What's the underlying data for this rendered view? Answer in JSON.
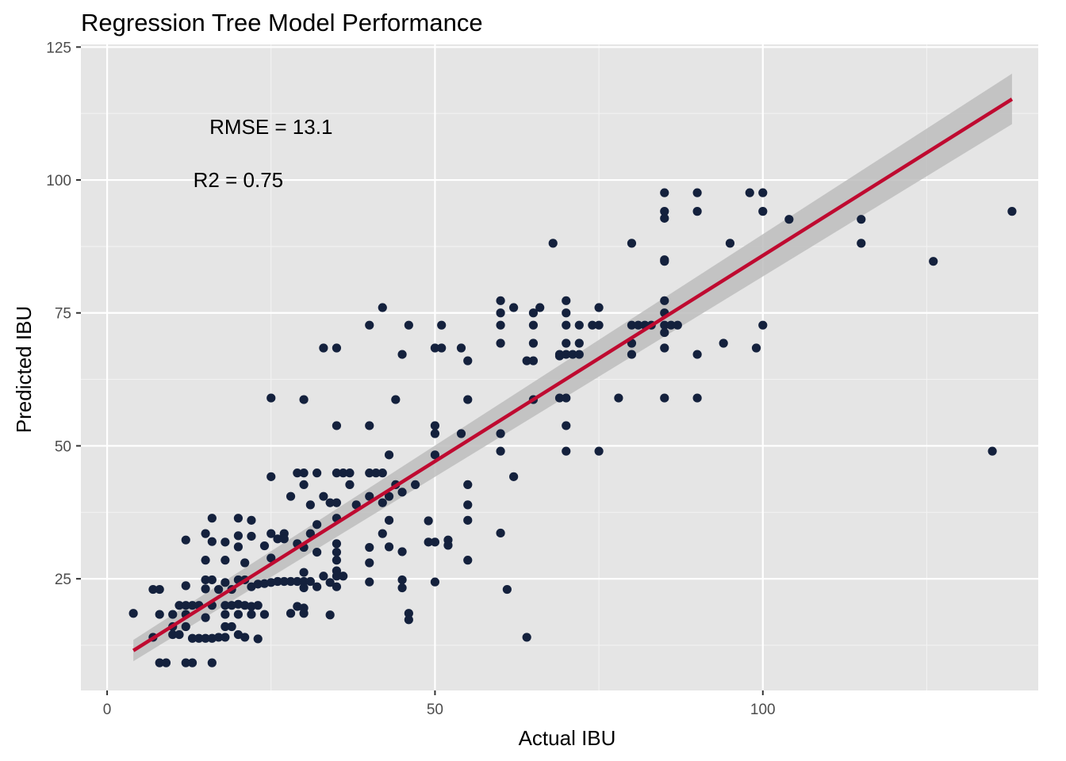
{
  "chart_data": {
    "type": "scatter",
    "title": "Regression Tree Model Performance",
    "xlabel": "Actual IBU",
    "ylabel": "Predicted IBU",
    "xlim": [
      -4,
      142
    ],
    "ylim": [
      4,
      125.5
    ],
    "x_ticks": [
      0,
      50,
      100
    ],
    "x_tick_labels": [
      "0",
      "50",
      "100"
    ],
    "y_ticks": [
      25,
      50,
      75,
      100,
      125
    ],
    "y_tick_labels": [
      "25",
      "50",
      "75",
      "100",
      "125"
    ],
    "grid": true,
    "background_color": "#e5e5e5",
    "point_color": "#14213d",
    "fit_line_color": "#bf0a30",
    "confidence_band_color": "#bdbdbd",
    "annotations": [
      {
        "text": "RMSE = 13.1",
        "x": 25,
        "y": 110
      },
      {
        "text": "R2 = 0.75",
        "x": 20,
        "y": 100
      }
    ],
    "fit_line": {
      "x": [
        4,
        138
      ],
      "y": [
        11.5,
        115.2
      ]
    },
    "confidence_band": {
      "x": [
        4,
        138
      ],
      "y_lower": [
        9.5,
        110.5
      ],
      "y_upper": [
        13.5,
        120
      ]
    },
    "points": [
      [
        4,
        18.5
      ],
      [
        7,
        23
      ],
      [
        7,
        14
      ],
      [
        8,
        23
      ],
      [
        8,
        18.3
      ],
      [
        8,
        9.2
      ],
      [
        9,
        9.2
      ],
      [
        10,
        18.3
      ],
      [
        10,
        16
      ],
      [
        10,
        14.5
      ],
      [
        11,
        20
      ],
      [
        11,
        14.5
      ],
      [
        12,
        23.7
      ],
      [
        12,
        20
      ],
      [
        12,
        18.3
      ],
      [
        12,
        16
      ],
      [
        12,
        9.2
      ],
      [
        12,
        32.3
      ],
      [
        13,
        20
      ],
      [
        13,
        13.8
      ],
      [
        13,
        9.2
      ],
      [
        14,
        20
      ],
      [
        14,
        13.8
      ],
      [
        15,
        33.5
      ],
      [
        15,
        28.5
      ],
      [
        15,
        24.8
      ],
      [
        15,
        23.1
      ],
      [
        15,
        17.7
      ],
      [
        15,
        13.8
      ],
      [
        16,
        36.4
      ],
      [
        16,
        32
      ],
      [
        16,
        24.8
      ],
      [
        16,
        20
      ],
      [
        16,
        13.8
      ],
      [
        16,
        9.2
      ],
      [
        17,
        23
      ],
      [
        17,
        14
      ],
      [
        18,
        31.9
      ],
      [
        18,
        28.5
      ],
      [
        18,
        24.3
      ],
      [
        18,
        20
      ],
      [
        18,
        18.3
      ],
      [
        18,
        16
      ],
      [
        18,
        14
      ],
      [
        19,
        23
      ],
      [
        19,
        20
      ],
      [
        19,
        16
      ],
      [
        20,
        36.4
      ],
      [
        20,
        33.1
      ],
      [
        20,
        31
      ],
      [
        20,
        24.8
      ],
      [
        20,
        20.2
      ],
      [
        20,
        18.3
      ],
      [
        20,
        14.5
      ],
      [
        21,
        28
      ],
      [
        21,
        24.8
      ],
      [
        21,
        20
      ],
      [
        21,
        14
      ],
      [
        22,
        36
      ],
      [
        22,
        33
      ],
      [
        22,
        23.5
      ],
      [
        22,
        19.8
      ],
      [
        22,
        18.3
      ],
      [
        23,
        24
      ],
      [
        23,
        20
      ],
      [
        23,
        13.7
      ],
      [
        24,
        31.2
      ],
      [
        24,
        24.1
      ],
      [
        24,
        18.3
      ],
      [
        25,
        59
      ],
      [
        25,
        44.2
      ],
      [
        25,
        33.5
      ],
      [
        25,
        28.9
      ],
      [
        25,
        24.3
      ],
      [
        26,
        32.5
      ],
      [
        26,
        24.5
      ],
      [
        27,
        33.5
      ],
      [
        27,
        32.5
      ],
      [
        27,
        24.5
      ],
      [
        28,
        40.5
      ],
      [
        28,
        24.5
      ],
      [
        28,
        18.5
      ],
      [
        29,
        44.9
      ],
      [
        29,
        31.6
      ],
      [
        29,
        24.5
      ],
      [
        29,
        19.8
      ],
      [
        30,
        58.7
      ],
      [
        30,
        44.9
      ],
      [
        30,
        42.7
      ],
      [
        30,
        30.9
      ],
      [
        30,
        26.2
      ],
      [
        30,
        24.5
      ],
      [
        30,
        23.3
      ],
      [
        30,
        19.5
      ],
      [
        30,
        18.5
      ],
      [
        31,
        38.9
      ],
      [
        31,
        33.5
      ],
      [
        31,
        24.5
      ],
      [
        32,
        44.9
      ],
      [
        32,
        35.2
      ],
      [
        32,
        30
      ],
      [
        32,
        23.5
      ],
      [
        33,
        68.4
      ],
      [
        33,
        40.5
      ],
      [
        33,
        25.5
      ],
      [
        34,
        39.3
      ],
      [
        34,
        18.2
      ],
      [
        34,
        24.3
      ],
      [
        35,
        68.4
      ],
      [
        35,
        53.8
      ],
      [
        35,
        44.9
      ],
      [
        35,
        39.3
      ],
      [
        35,
        36.4
      ],
      [
        35,
        31.6
      ],
      [
        35,
        30
      ],
      [
        35,
        28.5
      ],
      [
        35,
        26.5
      ],
      [
        35,
        25.5
      ],
      [
        35,
        23.5
      ],
      [
        36,
        44.9
      ],
      [
        36,
        25.5
      ],
      [
        37,
        44.9
      ],
      [
        37,
        42.7
      ],
      [
        38,
        38.9
      ],
      [
        40,
        72.7
      ],
      [
        40,
        53.8
      ],
      [
        40,
        44.9
      ],
      [
        40,
        40.5
      ],
      [
        40,
        30.9
      ],
      [
        40,
        28
      ],
      [
        40,
        24.4
      ],
      [
        41,
        44.9
      ],
      [
        42,
        76
      ],
      [
        42,
        44.9
      ],
      [
        42,
        39.3
      ],
      [
        42,
        33.5
      ],
      [
        43,
        48.3
      ],
      [
        43,
        40.5
      ],
      [
        43,
        36
      ],
      [
        43,
        31
      ],
      [
        44,
        58.7
      ],
      [
        44,
        42.7
      ],
      [
        45,
        67.2
      ],
      [
        45,
        41.3
      ],
      [
        45,
        30.1
      ],
      [
        45,
        24.8
      ],
      [
        45,
        23.3
      ],
      [
        46,
        72.7
      ],
      [
        46,
        18.5
      ],
      [
        46,
        17.3
      ],
      [
        47,
        42.7
      ],
      [
        49,
        35.9
      ],
      [
        49,
        31.9
      ],
      [
        50,
        68.4
      ],
      [
        50,
        53.8
      ],
      [
        50,
        52.3
      ],
      [
        50,
        48.3
      ],
      [
        50,
        31.9
      ],
      [
        50,
        24.4
      ],
      [
        51,
        72.7
      ],
      [
        51,
        68.4
      ],
      [
        52,
        32.3
      ],
      [
        52,
        31.3
      ],
      [
        54,
        68.4
      ],
      [
        54,
        52.3
      ],
      [
        55,
        66
      ],
      [
        55,
        58.7
      ],
      [
        55,
        42.7
      ],
      [
        55,
        38.9
      ],
      [
        55,
        36
      ],
      [
        55,
        28.5
      ],
      [
        60,
        77.3
      ],
      [
        60,
        75
      ],
      [
        60,
        72.7
      ],
      [
        60,
        69.3
      ],
      [
        60,
        52.3
      ],
      [
        60,
        49
      ],
      [
        60,
        33.6
      ],
      [
        61,
        23
      ],
      [
        62,
        76
      ],
      [
        62,
        44.2
      ],
      [
        64,
        66
      ],
      [
        64,
        14
      ],
      [
        65,
        75
      ],
      [
        65,
        72.7
      ],
      [
        65,
        69.3
      ],
      [
        65,
        66
      ],
      [
        65,
        58.7
      ],
      [
        66,
        76
      ],
      [
        68,
        88.1
      ],
      [
        69,
        66.9
      ],
      [
        69,
        67.2
      ],
      [
        69,
        59
      ],
      [
        70,
        77.3
      ],
      [
        70,
        75
      ],
      [
        70,
        72.7
      ],
      [
        70,
        69.3
      ],
      [
        70,
        67.2
      ],
      [
        70,
        59
      ],
      [
        70,
        53.8
      ],
      [
        70,
        49
      ],
      [
        71,
        67.2
      ],
      [
        72,
        72.7
      ],
      [
        72,
        69.3
      ],
      [
        72,
        67.2
      ],
      [
        74,
        72.7
      ],
      [
        75,
        76
      ],
      [
        75,
        72.7
      ],
      [
        75,
        49
      ],
      [
        78,
        59
      ],
      [
        80,
        88.1
      ],
      [
        80,
        72.7
      ],
      [
        80,
        69.3
      ],
      [
        80,
        67.2
      ],
      [
        81,
        72.7
      ],
      [
        82,
        72.7
      ],
      [
        83,
        72.7
      ],
      [
        85,
        97.6
      ],
      [
        85,
        94.1
      ],
      [
        85,
        92.8
      ],
      [
        85,
        85
      ],
      [
        85,
        84.7
      ],
      [
        85,
        77.3
      ],
      [
        85,
        75
      ],
      [
        85,
        72.7
      ],
      [
        85,
        71.3
      ],
      [
        85,
        68.4
      ],
      [
        85,
        59
      ],
      [
        86,
        72.7
      ],
      [
        87,
        72.7
      ],
      [
        90,
        97.6
      ],
      [
        90,
        94.1
      ],
      [
        90,
        67.2
      ],
      [
        90,
        59
      ],
      [
        94,
        69.3
      ],
      [
        95,
        88.1
      ],
      [
        98,
        97.6
      ],
      [
        99,
        68.4
      ],
      [
        100,
        97.6
      ],
      [
        100,
        94.1
      ],
      [
        100,
        72.7
      ],
      [
        104,
        92.6
      ],
      [
        115,
        92.6
      ],
      [
        115,
        88.1
      ],
      [
        126,
        84.7
      ],
      [
        135,
        49
      ],
      [
        138,
        94.1
      ]
    ]
  }
}
